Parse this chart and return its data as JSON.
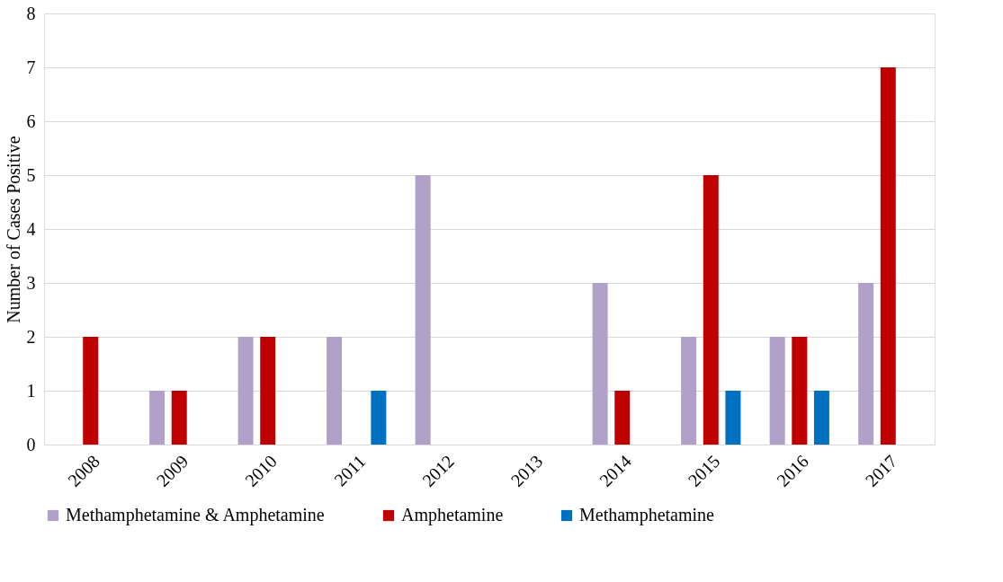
{
  "chart_data": {
    "type": "bar",
    "ylabel": "Number of Cases Positive",
    "categories": [
      "2008",
      "2009",
      "2010",
      "2011",
      "2012",
      "2013",
      "2014",
      "2015",
      "2016",
      "2017"
    ],
    "series": [
      {
        "name": "Methamphetamine & Amphetamine",
        "color": "#b1a0c7",
        "values": [
          null,
          1,
          2,
          2,
          5,
          null,
          3,
          2,
          2,
          3
        ]
      },
      {
        "name": "Amphetamine",
        "color": "#c00000",
        "values": [
          2,
          1,
          2,
          null,
          null,
          null,
          1,
          5,
          2,
          7
        ]
      },
      {
        "name": "Methamphetamine",
        "color": "#0070c0",
        "values": [
          null,
          null,
          null,
          1,
          null,
          null,
          null,
          1,
          1,
          null
        ]
      }
    ],
    "ylim": [
      0,
      8
    ],
    "yticks": [
      0,
      1,
      2,
      3,
      4,
      5,
      6,
      7,
      8
    ],
    "grid": "y",
    "legend": "bottom"
  }
}
